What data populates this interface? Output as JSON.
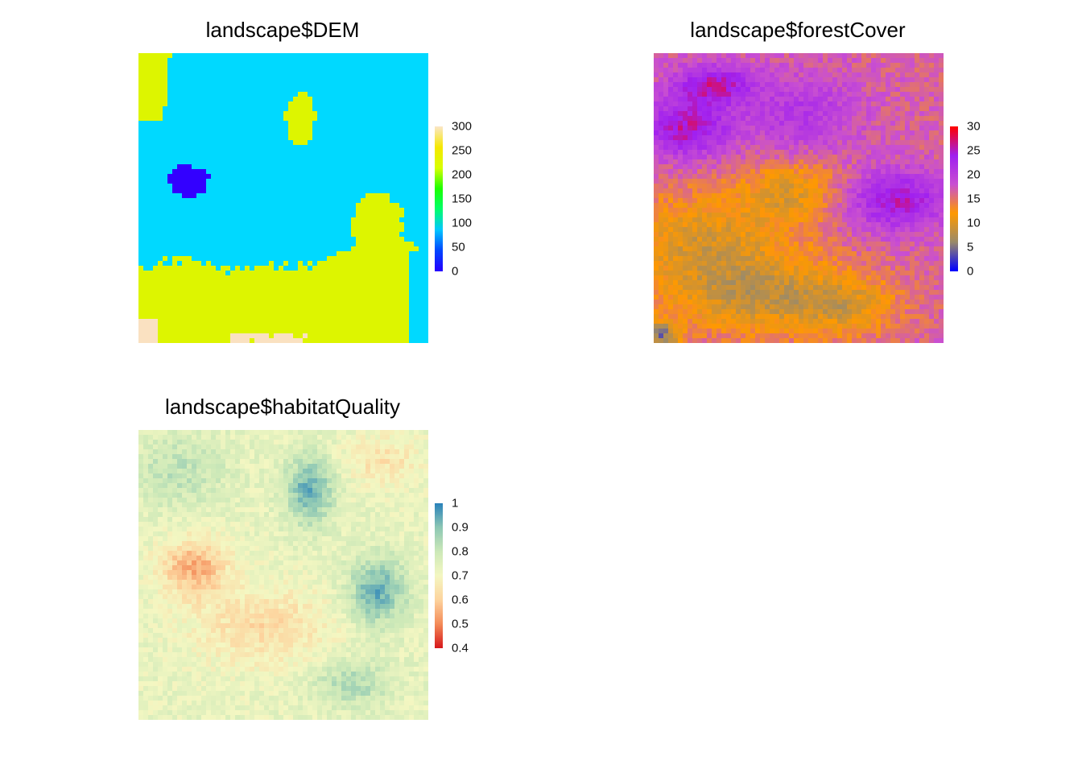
{
  "chart_data": [
    {
      "type": "heatmap",
      "title": "landscape$DEM",
      "value_range": [
        0,
        300
      ],
      "legend": {
        "ticks": [
          "300",
          "250",
          "200",
          "150",
          "100",
          "50",
          "0"
        ],
        "colors": [
          "#2500ff",
          "#0047ff",
          "#00c8ff",
          "#00ff6a",
          "#1dff00",
          "#d8ff00",
          "#f6e800",
          "#fae6c5"
        ]
      },
      "classes": [
        {
          "label": "0-50",
          "color": "#3300ff"
        },
        {
          "label": "50-100",
          "color": "#00d9ff"
        },
        {
          "label": "200-250",
          "color": "#ddf500"
        },
        {
          "label": "250-300",
          "color": "#fae1c1"
        }
      ]
    },
    {
      "type": "heatmap",
      "title": "landscape$forestCover",
      "value_range": [
        0,
        30
      ],
      "legend": {
        "ticks": [
          "30",
          "25",
          "20",
          "15",
          "10",
          "5",
          "0"
        ],
        "colors": [
          "#0000ff",
          "#9a8a6a",
          "#ff9900",
          "#c94fd1",
          "#a020f0",
          "#ff0000"
        ]
      }
    },
    {
      "type": "heatmap",
      "title": "landscape$habitatQuality",
      "value_range": [
        0.35,
        1.0
      ],
      "legend": {
        "ticks": [
          "1",
          "0.9",
          "0.8",
          "0.7",
          "0.6",
          "0.5",
          "0.4"
        ],
        "colors": [
          "#d7191c",
          "#f48c59",
          "#fdd49e",
          "#f4f7c2",
          "#cde9b8",
          "#8ec8b4",
          "#2b83ba"
        ]
      }
    }
  ]
}
